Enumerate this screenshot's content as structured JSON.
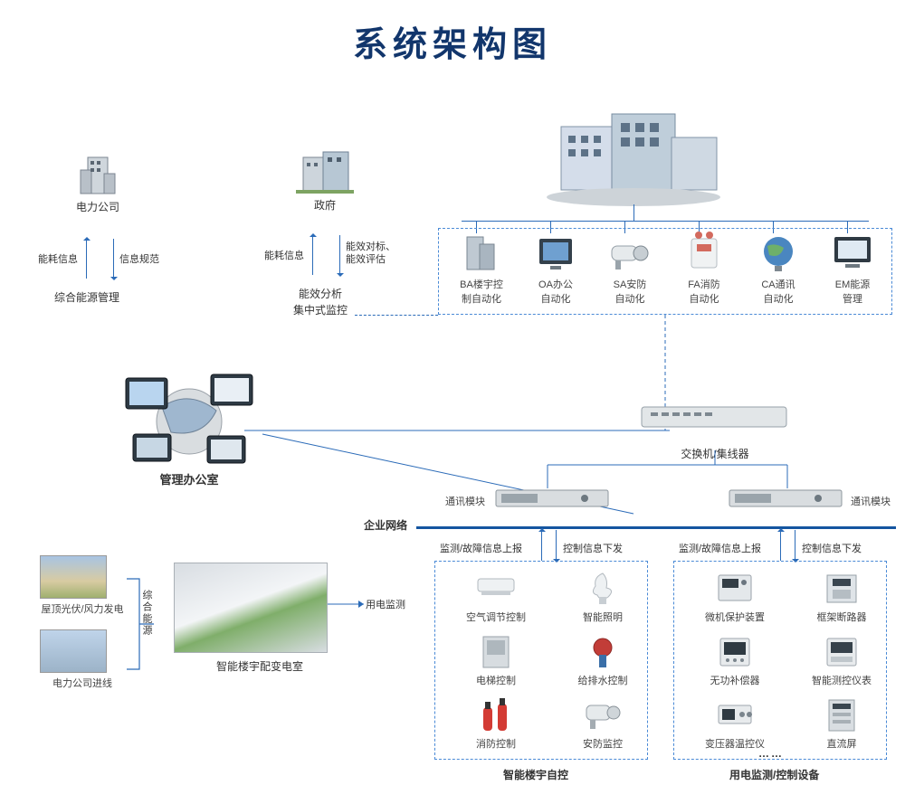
{
  "title": "系统架构图",
  "top_nodes": {
    "power": {
      "label": "电力公司"
    },
    "gov": {
      "label": "政府"
    },
    "building": {
      "label": ""
    }
  },
  "power_flow": {
    "up": "能耗信息",
    "down": "信息规范",
    "bottom": "综合能源管理"
  },
  "gov_flow": {
    "up": "能耗信息",
    "down": "能效对标、\n能效评估",
    "bottom1": "能效分析",
    "bottom2": "集中式监控"
  },
  "subsystems": [
    {
      "l1": "BA楼宇控",
      "l2": "制自动化"
    },
    {
      "l1": "OA办公",
      "l2": "自动化"
    },
    {
      "l1": "SA安防",
      "l2": "自动化"
    },
    {
      "l1": "FA消防",
      "l2": "自动化"
    },
    {
      "l1": "CA通讯",
      "l2": "自动化"
    },
    {
      "l1": "EM能源",
      "l2": "管理"
    }
  ],
  "office": {
    "label": "管理办公室"
  },
  "switch": {
    "label": "交换机/集线器"
  },
  "comm_module": "通讯模块",
  "network": "企业网络",
  "group_a": {
    "title": "智能楼宇自控",
    "up": "监测/故障信息上报",
    "down": "控制信息下发",
    "items": [
      "空气调节控制",
      "智能照明",
      "电梯控制",
      "给排水控制",
      "消防控制",
      "安防监控"
    ]
  },
  "group_b": {
    "title": "用电监测/控制设备",
    "up": "监测/故障信息上报",
    "down": "控制信息下发",
    "items": [
      "微机保护装置",
      "框架断路器",
      "无功补偿器",
      "智能测控仪表",
      "变压器温控仪",
      "直流屏"
    ]
  },
  "left_energy": {
    "pv": "屋顶光伏/风力发电",
    "grid": "电力公司进线",
    "combined": "综合能源",
    "room": "智能楼宇配变电室",
    "monitor": "用电监测"
  },
  "colors": {
    "accent": "#1455a0",
    "line": "#2b6bb8",
    "dash": "#4a8ad6"
  }
}
